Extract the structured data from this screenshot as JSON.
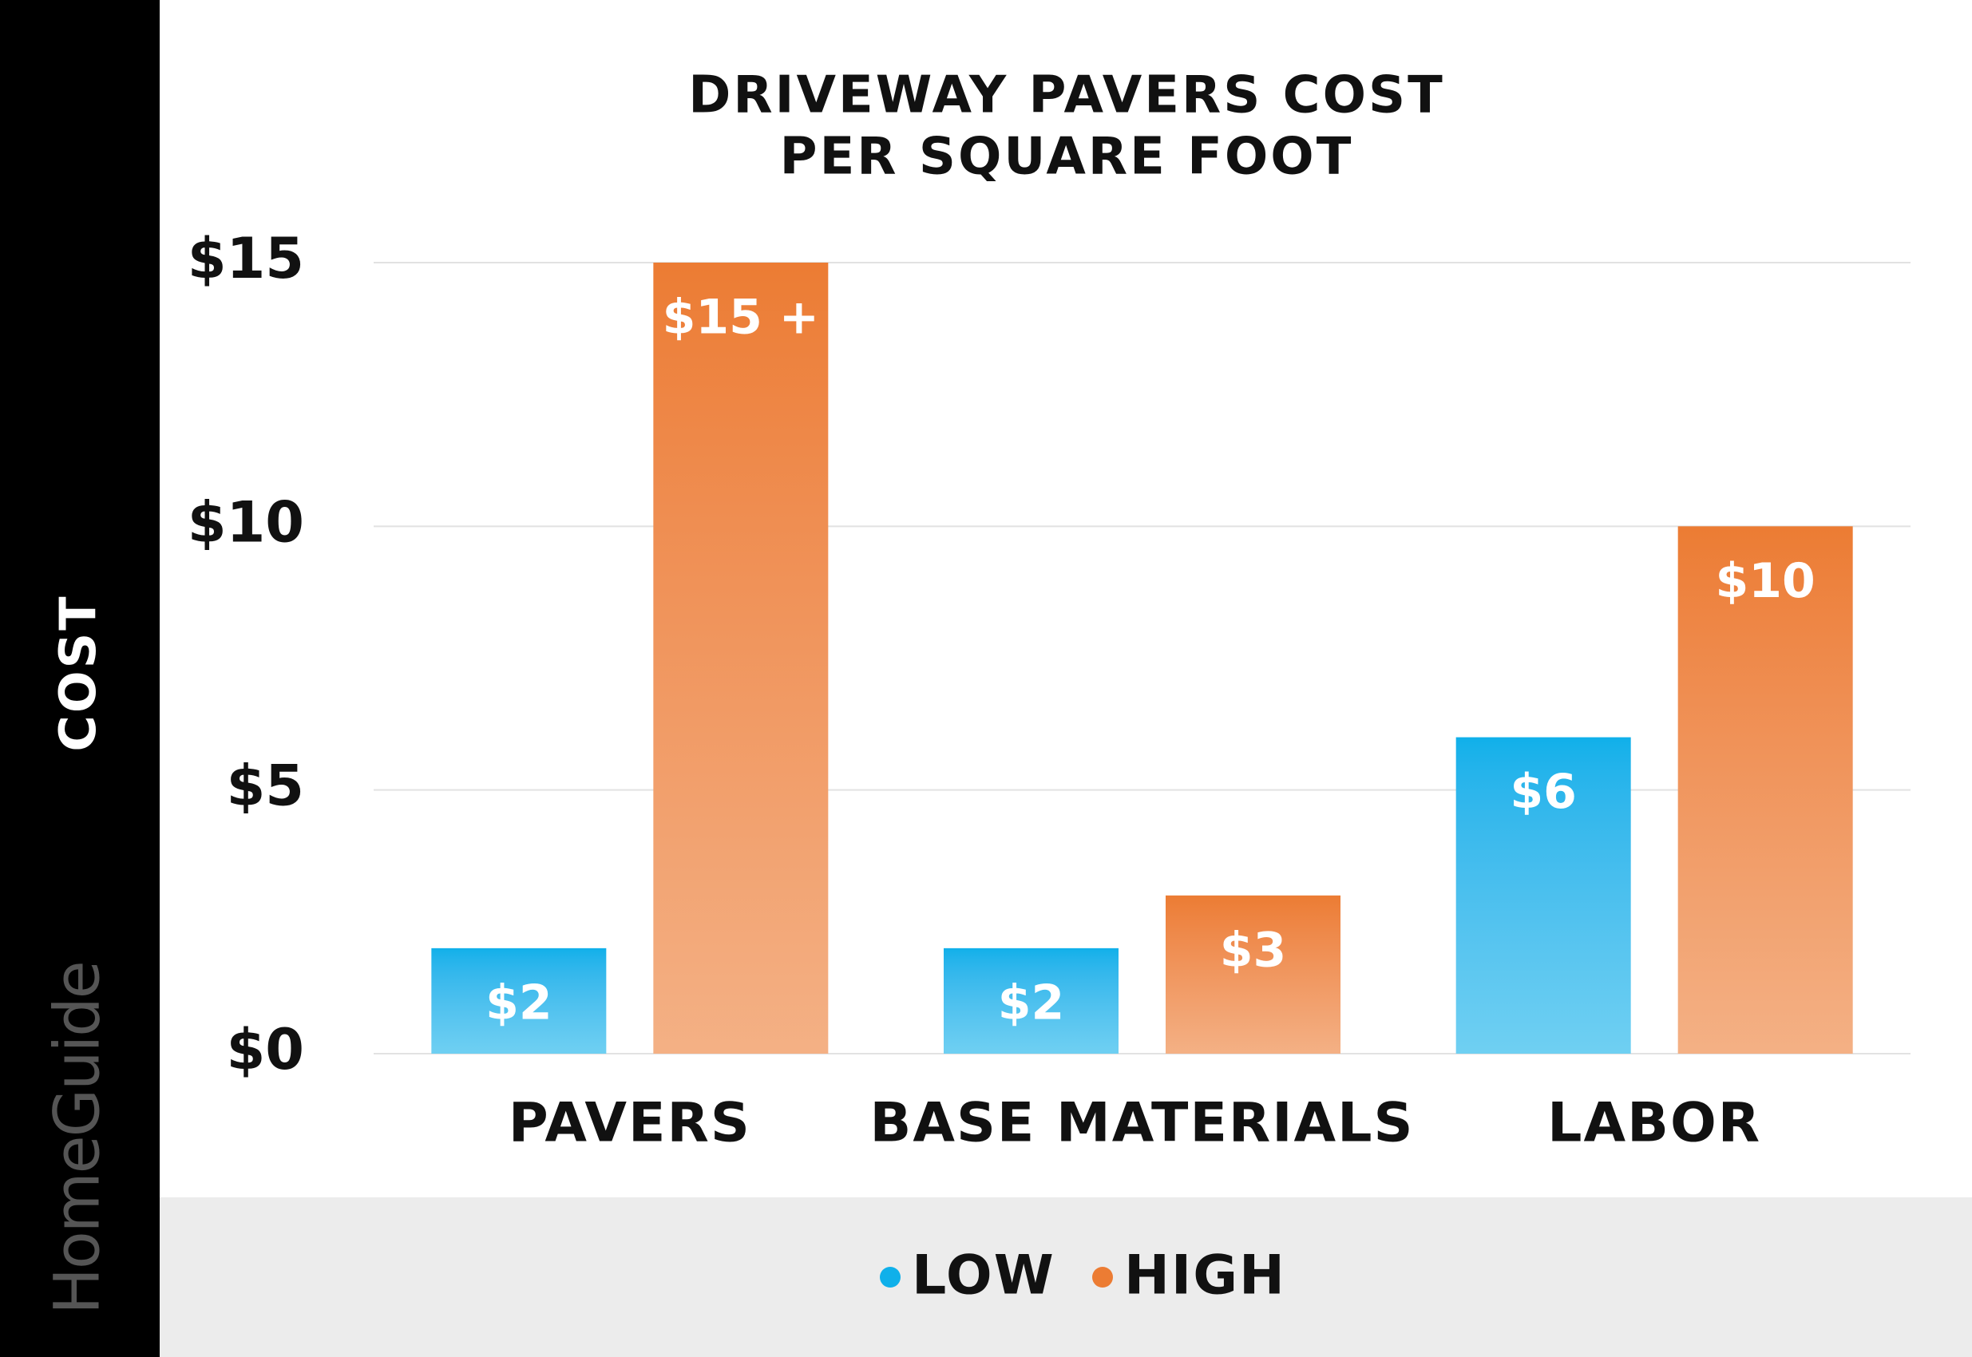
{
  "chart_data": {
    "type": "bar",
    "title": [
      "DRIVEWAY PAVERS COST",
      "PER SQUARE FOOT"
    ],
    "y_label": "COST",
    "watermark": "HomeGuide",
    "categories": [
      "PAVERS",
      "BASE MATERIALS",
      "LABOR"
    ],
    "series": [
      {
        "name": "LOW",
        "color": "#0fb0ea",
        "values": [
          2,
          2,
          6
        ],
        "value_labels": [
          "$2",
          "$2",
          "$6"
        ]
      },
      {
        "name": "HIGH",
        "color": "#ec7c33",
        "values": [
          15,
          3,
          10
        ],
        "value_labels": [
          "$15 +",
          "$3",
          "$10"
        ]
      }
    ],
    "ylim": [
      0,
      15
    ],
    "yticks": [
      {
        "value": 0,
        "label": "$0"
      },
      {
        "value": 5,
        "label": "$5"
      },
      {
        "value": 10,
        "label": "$10"
      },
      {
        "value": 15,
        "label": "$15"
      }
    ],
    "grid": true
  }
}
